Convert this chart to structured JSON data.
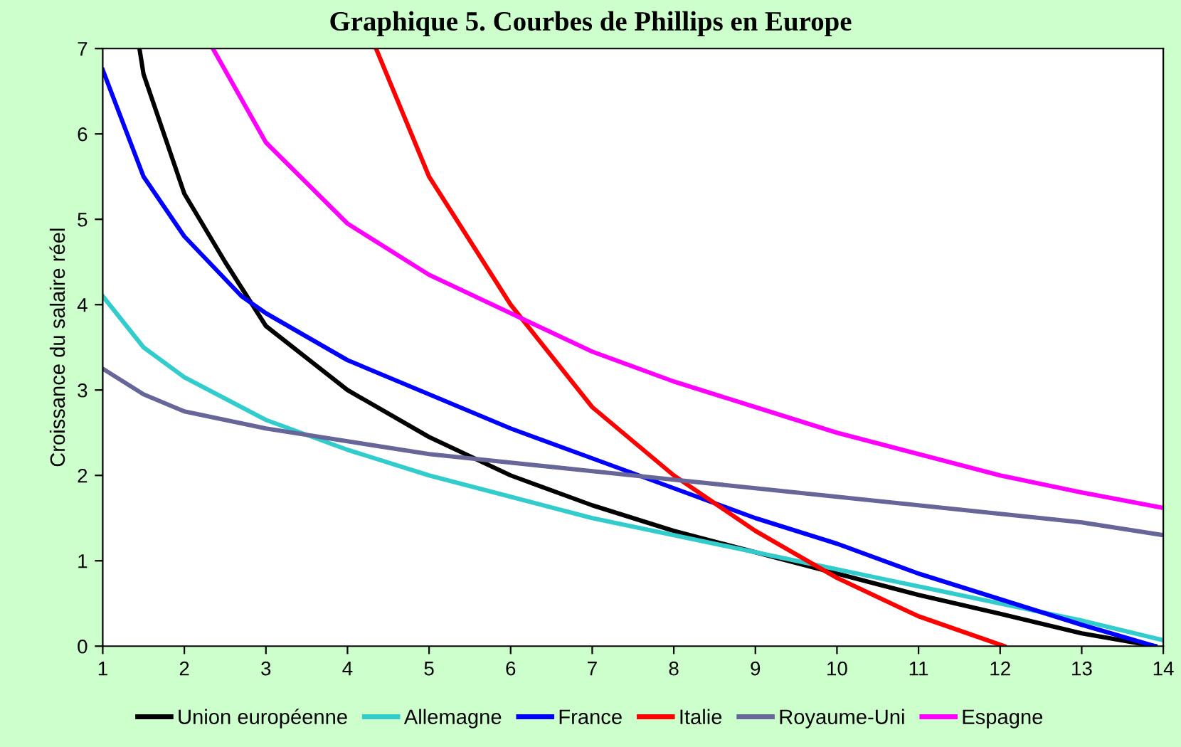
{
  "chart_data": {
    "type": "line",
    "title": "Graphique 5. Courbes de Phillips en Europe",
    "ylabel": "Croissance du salaire réel",
    "xlim": [
      1,
      14
    ],
    "xticks": [
      1,
      2,
      3,
      4,
      5,
      6,
      7,
      8,
      9,
      10,
      11,
      12,
      13,
      14
    ],
    "ylim": [
      0,
      7
    ],
    "yticks": [
      0,
      1,
      2,
      3,
      4,
      5,
      6,
      7
    ],
    "grid": false,
    "legend": "bottom",
    "marker": "none",
    "line_style": "solid",
    "series": [
      {
        "name": "Union européenne",
        "color": "#000000",
        "x": [
          1.45,
          1.5,
          2,
          2.5,
          3,
          4,
          5,
          6,
          7,
          8,
          9,
          10,
          11,
          12,
          13,
          13.9
        ],
        "values": [
          7,
          6.7,
          5.3,
          4.5,
          3.75,
          3.0,
          2.45,
          2.0,
          1.65,
          1.35,
          1.1,
          0.85,
          0.6,
          0.38,
          0.15,
          0
        ]
      },
      {
        "name": "Allemagne",
        "color": "#33cccc",
        "x": [
          1,
          1.5,
          2,
          3,
          4,
          5,
          6,
          7,
          8,
          9,
          10,
          11,
          12,
          13,
          14
        ],
        "values": [
          4.1,
          3.5,
          3.15,
          2.65,
          2.3,
          2.0,
          1.75,
          1.5,
          1.3,
          1.1,
          0.9,
          0.7,
          0.5,
          0.3,
          0.07
        ]
      },
      {
        "name": "France",
        "color": "#0000ff",
        "x": [
          1,
          1.3,
          1.5,
          2,
          2.7,
          3,
          4,
          5,
          6,
          7,
          8,
          9,
          10,
          11,
          12,
          13,
          13.9
        ],
        "values": [
          6.75,
          6.0,
          5.5,
          4.8,
          4.1,
          3.9,
          3.35,
          2.95,
          2.55,
          2.2,
          1.85,
          1.5,
          1.2,
          0.85,
          0.55,
          0.25,
          0
        ]
      },
      {
        "name": "Italie",
        "color": "#ff0000",
        "x": [
          4.35,
          5,
          6,
          7,
          8,
          9,
          10,
          11,
          12.05
        ],
        "values": [
          7,
          5.5,
          4.0,
          2.8,
          2.0,
          1.35,
          0.8,
          0.35,
          0
        ]
      },
      {
        "name": "Royaume-Uni",
        "color": "#666699",
        "x": [
          1,
          1.5,
          2,
          3,
          4,
          5,
          6,
          7,
          8,
          9,
          10,
          11,
          12,
          13,
          14
        ],
        "values": [
          3.25,
          2.95,
          2.75,
          2.55,
          2.4,
          2.25,
          2.15,
          2.05,
          1.95,
          1.85,
          1.75,
          1.65,
          1.55,
          1.45,
          1.3
        ]
      },
      {
        "name": "Espagne",
        "color": "#ff00ff",
        "x": [
          2.35,
          3,
          4,
          5,
          6,
          7,
          8,
          9,
          10,
          11,
          12,
          13,
          14
        ],
        "values": [
          7,
          5.9,
          4.95,
          4.35,
          3.9,
          3.45,
          3.1,
          2.8,
          2.5,
          2.25,
          2.0,
          1.8,
          1.62
        ]
      }
    ]
  }
}
